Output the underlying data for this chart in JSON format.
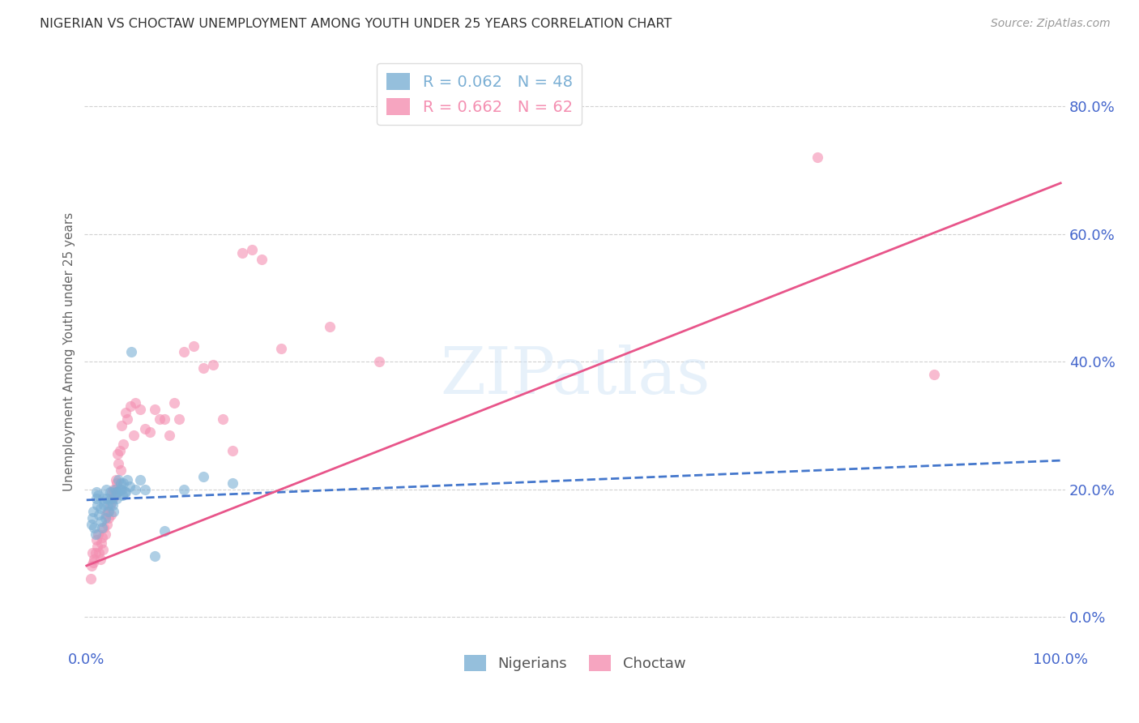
{
  "title": "NIGERIAN VS CHOCTAW UNEMPLOYMENT AMONG YOUTH UNDER 25 YEARS CORRELATION CHART",
  "source": "Source: ZipAtlas.com",
  "ylabel": "Unemployment Among Youth under 25 years",
  "watermark": "ZIPatlas",
  "xlim": [
    -0.002,
    1.005
  ],
  "ylim": [
    -0.05,
    0.88
  ],
  "yticks": [
    0.0,
    0.2,
    0.4,
    0.6,
    0.8
  ],
  "ytick_labels": [
    "0.0%",
    "20.0%",
    "40.0%",
    "60.0%",
    "80.0%"
  ],
  "xtick_labels": [
    "0.0%",
    "100.0%"
  ],
  "xtick_positions": [
    0.0,
    1.0
  ],
  "nigerian_R": 0.062,
  "nigerian_N": 48,
  "choctaw_R": 0.662,
  "choctaw_N": 62,
  "nigerian_color": "#7bafd4",
  "choctaw_color": "#f48fb1",
  "nigerian_line_color": "#4477cc",
  "choctaw_line_color": "#e8558a",
  "axis_color": "#4466cc",
  "background_color": "#ffffff",
  "grid_color": "#cccccc",
  "nigerian_x": [
    0.005,
    0.006,
    0.007,
    0.008,
    0.009,
    0.01,
    0.01,
    0.011,
    0.012,
    0.013,
    0.014,
    0.015,
    0.016,
    0.017,
    0.018,
    0.019,
    0.02,
    0.021,
    0.022,
    0.023,
    0.024,
    0.025,
    0.026,
    0.027,
    0.028,
    0.029,
    0.03,
    0.031,
    0.032,
    0.033,
    0.034,
    0.035,
    0.036,
    0.037,
    0.038,
    0.039,
    0.04,
    0.042,
    0.044,
    0.046,
    0.05,
    0.055,
    0.06,
    0.07,
    0.08,
    0.1,
    0.12,
    0.15
  ],
  "nigerian_y": [
    0.145,
    0.155,
    0.165,
    0.14,
    0.13,
    0.195,
    0.185,
    0.175,
    0.19,
    0.16,
    0.17,
    0.15,
    0.14,
    0.185,
    0.175,
    0.155,
    0.2,
    0.185,
    0.175,
    0.165,
    0.195,
    0.185,
    0.18,
    0.175,
    0.165,
    0.2,
    0.195,
    0.185,
    0.195,
    0.215,
    0.2,
    0.21,
    0.2,
    0.19,
    0.21,
    0.195,
    0.195,
    0.215,
    0.205,
    0.415,
    0.2,
    0.215,
    0.2,
    0.095,
    0.135,
    0.2,
    0.22,
    0.21
  ],
  "choctaw_x": [
    0.004,
    0.005,
    0.006,
    0.007,
    0.008,
    0.009,
    0.01,
    0.011,
    0.012,
    0.013,
    0.014,
    0.015,
    0.016,
    0.017,
    0.018,
    0.019,
    0.02,
    0.021,
    0.022,
    0.023,
    0.024,
    0.025,
    0.026,
    0.027,
    0.028,
    0.029,
    0.03,
    0.031,
    0.032,
    0.033,
    0.034,
    0.035,
    0.036,
    0.038,
    0.04,
    0.042,
    0.045,
    0.048,
    0.05,
    0.055,
    0.06,
    0.065,
    0.07,
    0.075,
    0.08,
    0.085,
    0.09,
    0.095,
    0.1,
    0.11,
    0.12,
    0.13,
    0.14,
    0.15,
    0.16,
    0.17,
    0.18,
    0.2,
    0.25,
    0.3,
    0.75,
    0.87
  ],
  "choctaw_y": [
    0.06,
    0.08,
    0.1,
    0.085,
    0.09,
    0.1,
    0.12,
    0.11,
    0.13,
    0.1,
    0.09,
    0.115,
    0.125,
    0.105,
    0.14,
    0.13,
    0.16,
    0.145,
    0.165,
    0.155,
    0.175,
    0.16,
    0.195,
    0.185,
    0.2,
    0.19,
    0.215,
    0.21,
    0.255,
    0.24,
    0.26,
    0.23,
    0.3,
    0.27,
    0.32,
    0.31,
    0.33,
    0.285,
    0.335,
    0.325,
    0.295,
    0.29,
    0.325,
    0.31,
    0.31,
    0.285,
    0.335,
    0.31,
    0.415,
    0.425,
    0.39,
    0.395,
    0.31,
    0.26,
    0.57,
    0.575,
    0.56,
    0.42,
    0.455,
    0.4,
    0.72,
    0.38
  ],
  "nigerian_line_intercept": 0.183,
  "nigerian_line_slope": 0.062,
  "choctaw_line_intercept": 0.08,
  "choctaw_line_slope": 0.6
}
